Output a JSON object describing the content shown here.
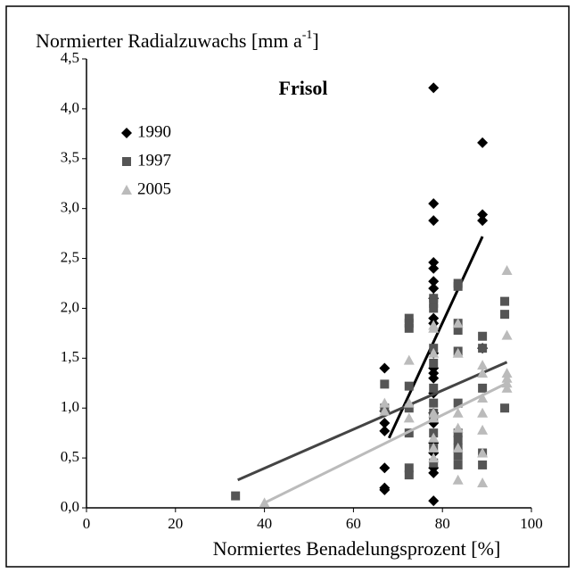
{
  "chart_data": {
    "type": "scatter",
    "title": "Frisol",
    "ylabel": {
      "text": "Normierter Radialzuwachs [mm a",
      "superscript": "-1",
      "end": "]"
    },
    "xlabel": "Normiertes Benadelungsprozent [%]",
    "xlim": [
      0,
      100
    ],
    "xticks": [
      0,
      20,
      40,
      60,
      80,
      100
    ],
    "ylim": [
      0,
      4.5
    ],
    "yticks": [
      {
        "value": 0,
        "label": "0,0"
      },
      {
        "value": 0.5,
        "label": "0,5"
      },
      {
        "value": 1,
        "label": "1,0"
      },
      {
        "value": 1.5,
        "label": "1,5"
      },
      {
        "value": 2,
        "label": "2,0"
      },
      {
        "value": 2.5,
        "label": "2,5"
      },
      {
        "value": 3,
        "label": "3,0"
      },
      {
        "value": 3.5,
        "label": "3,5"
      },
      {
        "value": 4,
        "label": "4,0"
      },
      {
        "value": 4.5,
        "label": "4,5"
      }
    ],
    "grid": false,
    "legend": "upper left",
    "series": [
      {
        "name": "1990",
        "color": "#000000",
        "marker": "diamond",
        "x": [
          67,
          67,
          67,
          67,
          67,
          67,
          67,
          78,
          78,
          78,
          78,
          78,
          78,
          78,
          78,
          78,
          78,
          78,
          78,
          78,
          78,
          78,
          78,
          78,
          78,
          78,
          78,
          78,
          78,
          89,
          89,
          89,
          89
        ],
        "values": [
          1.4,
          0.97,
          0.85,
          0.77,
          0.4,
          0.2,
          0.18,
          4.21,
          3.05,
          2.88,
          2.46,
          2.4,
          2.27,
          2.2,
          2.1,
          1.9,
          1.85,
          1.55,
          1.4,
          1.35,
          1.3,
          1.15,
          0.95,
          0.85,
          0.65,
          0.55,
          0.4,
          0.35,
          0.07,
          3.66,
          2.94,
          2.88,
          1.6
        ],
        "trend": {
          "x": [
            68,
            89
          ],
          "y": [
            0.7,
            2.72
          ],
          "color": "#000000"
        }
      },
      {
        "name": "1997",
        "color": "#555555",
        "marker": "square",
        "x": [
          33.5,
          67,
          67,
          72.5,
          72.5,
          72.5,
          72.5,
          72.5,
          72.5,
          72.5,
          72.5,
          78,
          78,
          78,
          78,
          78,
          78,
          78,
          78,
          78,
          78,
          78,
          78,
          83.5,
          83.5,
          83.5,
          83.5,
          83.5,
          83.5,
          83.5,
          83.5,
          83.5,
          83.5,
          83.5,
          89,
          89,
          89,
          89,
          89,
          94,
          94,
          94
        ],
        "values": [
          0.12,
          1.24,
          1.0,
          1.9,
          1.85,
          1.8,
          1.22,
          1.0,
          0.75,
          0.4,
          0.33,
          2.1,
          2.05,
          2.0,
          1.6,
          1.45,
          1.2,
          1.05,
          0.95,
          0.9,
          0.75,
          0.6,
          0.45,
          2.25,
          2.22,
          1.85,
          1.78,
          1.57,
          1.05,
          0.75,
          0.68,
          0.6,
          0.52,
          0.43,
          1.72,
          1.6,
          1.2,
          0.55,
          0.43,
          2.07,
          1.94,
          1.0
        ],
        "trend": {
          "x": [
            34,
            94.5
          ],
          "y": [
            0.28,
            1.46
          ],
          "color": "#444444"
        }
      },
      {
        "name": "2005",
        "color": "#bbbbbb",
        "marker": "triangle",
        "x": [
          40,
          67,
          67,
          72.5,
          72.5,
          72.5,
          78,
          78,
          78,
          78,
          78,
          78,
          78,
          78,
          83.5,
          83.5,
          83.5,
          83.5,
          83.5,
          83.5,
          89,
          89,
          89,
          89,
          89,
          89,
          89,
          94.5,
          94.5,
          94.5,
          94.5,
          94.5,
          94.5
        ],
        "values": [
          0.05,
          1.05,
          0.97,
          1.48,
          1.05,
          0.9,
          1.83,
          1.8,
          1.55,
          0.95,
          0.9,
          0.7,
          0.6,
          0.5,
          1.85,
          1.55,
          0.95,
          0.8,
          0.6,
          0.28,
          1.43,
          1.35,
          1.1,
          0.95,
          0.78,
          0.55,
          0.25,
          2.38,
          1.73,
          1.35,
          1.3,
          1.25,
          1.2
        ],
        "trend": {
          "x": [
            40,
            94.5
          ],
          "y": [
            0.05,
            1.25
          ],
          "color": "#bbbbbb"
        }
      }
    ]
  }
}
